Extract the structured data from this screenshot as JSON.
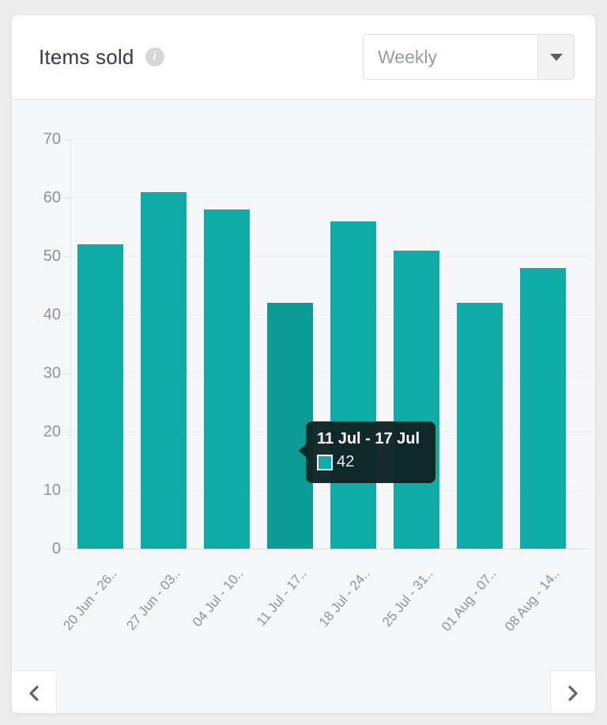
{
  "card": {
    "title": "Items sold",
    "info_icon_glyph": "i"
  },
  "period_select": {
    "value": "Weekly"
  },
  "chart_data": {
    "type": "bar",
    "title": "Items sold",
    "categories": [
      "20 Jun - 26..",
      "27 Jun - 03..",
      "04 Jul - 10..",
      "11 Jul - 17..",
      "18 Jul - 24..",
      "25 Jul - 31..",
      "01 Aug - 07..",
      "08 Aug - 14.."
    ],
    "values": [
      52,
      61,
      58,
      42,
      56,
      51,
      42,
      48
    ],
    "xlabel": "",
    "ylabel": "",
    "ylim": [
      0,
      70
    ],
    "yticks": [
      0,
      10,
      20,
      30,
      40,
      50,
      60,
      70
    ],
    "grid": true,
    "legend": "none",
    "bar_color": "#0faba7",
    "bar_color_highlight": "#0b9d95",
    "highlighted_index": 3
  },
  "tooltip": {
    "title": "11 Jul - 17 Jul",
    "value": "42",
    "swatch_color": "#0faba7",
    "bg_color": "rgba(15,35,34,0.96)"
  }
}
